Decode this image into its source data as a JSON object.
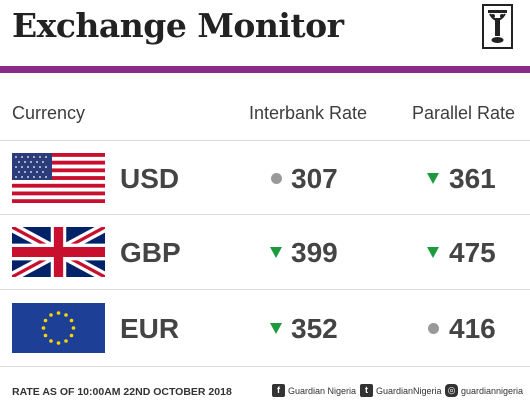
{
  "header": {
    "title": "Exchange Monitor",
    "logo_icon": "guardian-emblem-icon"
  },
  "columns": {
    "currency": "Currency",
    "interbank": "Interbank Rate",
    "parallel": "Parallel Rate"
  },
  "rows": [
    {
      "code": "USD",
      "flag_icon": "us-flag-icon",
      "interbank": "307",
      "interbank_trend": "unchanged",
      "parallel": "361",
      "parallel_trend": "down"
    },
    {
      "code": "GBP",
      "flag_icon": "uk-flag-icon",
      "interbank": "399",
      "interbank_trend": "down",
      "parallel": "475",
      "parallel_trend": "down"
    },
    {
      "code": "EUR",
      "flag_icon": "eu-flag-icon",
      "interbank": "352",
      "interbank_trend": "down",
      "parallel": "416",
      "parallel_trend": "unchanged"
    }
  ],
  "footer": {
    "as_of": "RATE AS OF 10:00AM 22ND OCTOBER 2018",
    "facebook": "Guardian Nigeria",
    "twitter": "GuardianNigeria",
    "instagram": "guardiannigeria"
  },
  "colors": {
    "accent_rule": "#8a2a8b",
    "down_indicator": "#1e9a3e",
    "unchanged_indicator": "#999999"
  }
}
